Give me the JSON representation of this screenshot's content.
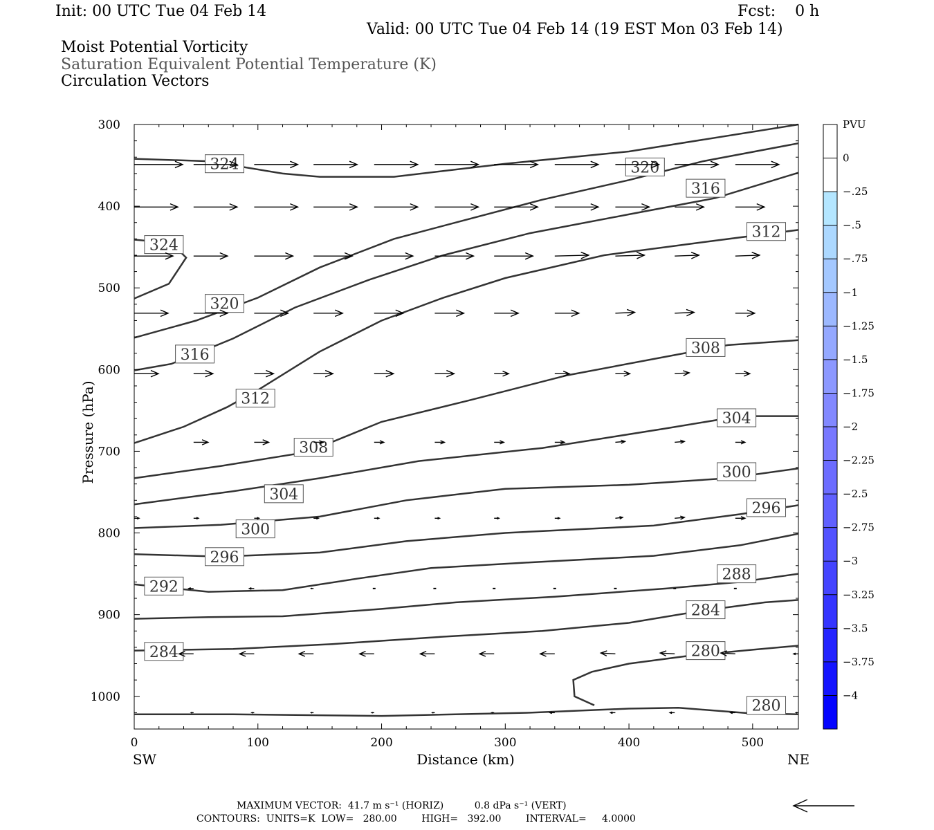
{
  "header": {
    "init": "Init: 00 UTC Tue 04 Feb 14",
    "fcst": "Fcst:    0 h",
    "valid": "Valid: 00 UTC Tue 04 Feb 14 (19 EST Mon 03 Feb 14)",
    "titles": [
      "Moist Potential Vorticity",
      "Saturation Equivalent Potential Temperature (K)",
      "Circulation Vectors"
    ]
  },
  "footer": {
    "line1": "MAXIMUM VECTOR:  41.7 m s⁻¹ (HORIZ)          0.8 dPa s⁻¹ (VERT)",
    "line2": "CONTOURS:  UNITS=K  LOW=   280.00        HIGH=   392.00        INTERVAL=     4.0000"
  },
  "chart_data": {
    "type": "contour cross-section",
    "xlabel": "Distance (km)",
    "ylabel": "Pressure (hPa)",
    "x_end_labels": {
      "left": "SW",
      "right": "NE"
    },
    "xlim": [
      0,
      537
    ],
    "ylim": [
      1040,
      300
    ],
    "x_ticks": [
      0,
      100,
      200,
      300,
      400,
      500
    ],
    "y_ticks": [
      300,
      400,
      500,
      600,
      700,
      800,
      900,
      1000
    ],
    "contour_color": "#333333",
    "contours": [
      {
        "label": "324",
        "points": [
          [
            0,
            342
          ],
          [
            60,
            345
          ],
          [
            120,
            360
          ],
          [
            150,
            364
          ],
          [
            210,
            364
          ],
          [
            300,
            348
          ],
          [
            400,
            333
          ],
          [
            537,
            300
          ]
        ],
        "label_at": [
          [
            73,
            348
          ]
        ]
      },
      {
        "label": "324",
        "points": [
          [
            0,
            441
          ],
          [
            30,
            445
          ],
          [
            42,
            463
          ],
          [
            28,
            495
          ],
          [
            0,
            513
          ]
        ],
        "label_at": [
          [
            24,
            447
          ]
        ]
      },
      {
        "label": "320",
        "points": [
          [
            0,
            561
          ],
          [
            50,
            540
          ],
          [
            100,
            512
          ],
          [
            150,
            475
          ],
          [
            210,
            440
          ],
          [
            260,
            420
          ],
          [
            330,
            392
          ],
          [
            400,
            368
          ],
          [
            460,
            345
          ],
          [
            537,
            323
          ]
        ],
        "label_at": [
          [
            73,
            519
          ],
          [
            413,
            352
          ]
        ]
      },
      {
        "label": "316",
        "points": [
          [
            0,
            601
          ],
          [
            30,
            593
          ],
          [
            80,
            562
          ],
          [
            130,
            524
          ],
          [
            190,
            490
          ],
          [
            250,
            460
          ],
          [
            320,
            433
          ],
          [
            400,
            410
          ],
          [
            470,
            390
          ],
          [
            537,
            359
          ]
        ],
        "label_at": [
          [
            49,
            581
          ],
          [
            462,
            378
          ]
        ]
      },
      {
        "label": "312",
        "points": [
          [
            0,
            690
          ],
          [
            40,
            670
          ],
          [
            75,
            646
          ],
          [
            100,
            625
          ],
          [
            150,
            578
          ],
          [
            200,
            540
          ],
          [
            250,
            512
          ],
          [
            300,
            488
          ],
          [
            380,
            460
          ],
          [
            460,
            444
          ],
          [
            537,
            429
          ]
        ],
        "label_at": [
          [
            98,
            635
          ],
          [
            511,
            431
          ]
        ]
      },
      {
        "label": "308",
        "points": [
          [
            0,
            733
          ],
          [
            70,
            718
          ],
          [
            140,
            701
          ],
          [
            200,
            664
          ],
          [
            270,
            638
          ],
          [
            350,
            607
          ],
          [
            420,
            587
          ],
          [
            480,
            570
          ],
          [
            537,
            564
          ]
        ],
        "label_at": [
          [
            145,
            695
          ],
          [
            462,
            573
          ]
        ]
      },
      {
        "label": "304",
        "points": [
          [
            0,
            765
          ],
          [
            80,
            749
          ],
          [
            150,
            733
          ],
          [
            230,
            712
          ],
          [
            330,
            696
          ],
          [
            430,
            672
          ],
          [
            490,
            657
          ],
          [
            537,
            657
          ]
        ],
        "label_at": [
          [
            121,
            752
          ],
          [
            487,
            659
          ]
        ]
      },
      {
        "label": "300",
        "points": [
          [
            0,
            794
          ],
          [
            70,
            790
          ],
          [
            150,
            780
          ],
          [
            220,
            760
          ],
          [
            300,
            746
          ],
          [
            400,
            741
          ],
          [
            480,
            733
          ],
          [
            537,
            721
          ]
        ],
        "label_at": [
          [
            98,
            795
          ],
          [
            487,
            725
          ]
        ]
      },
      {
        "label": "296",
        "points": [
          [
            0,
            826
          ],
          [
            70,
            829
          ],
          [
            150,
            824
          ],
          [
            220,
            810
          ],
          [
            300,
            800
          ],
          [
            420,
            791
          ],
          [
            490,
            777
          ],
          [
            537,
            766
          ]
        ],
        "label_at": [
          [
            73,
            829
          ],
          [
            511,
            769
          ]
        ]
      },
      {
        "label": "292",
        "points": [
          [
            0,
            863
          ],
          [
            60,
            872
          ],
          [
            120,
            870
          ],
          [
            180,
            856
          ],
          [
            240,
            843
          ],
          [
            320,
            836
          ],
          [
            420,
            828
          ],
          [
            490,
            815
          ],
          [
            537,
            801
          ]
        ],
        "label_at": [
          [
            24,
            865
          ]
        ]
      },
      {
        "label": "288",
        "points": [
          [
            0,
            905
          ],
          [
            60,
            903
          ],
          [
            120,
            902
          ],
          [
            200,
            893
          ],
          [
            260,
            885
          ],
          [
            340,
            878
          ],
          [
            430,
            868
          ],
          [
            490,
            860
          ],
          [
            537,
            850
          ]
        ],
        "label_at": [
          [
            487,
            850
          ]
        ]
      },
      {
        "label": "284",
        "points": [
          [
            0,
            944
          ],
          [
            80,
            942
          ],
          [
            160,
            936
          ],
          [
            250,
            927
          ],
          [
            330,
            920
          ],
          [
            400,
            910
          ],
          [
            460,
            895
          ],
          [
            510,
            885
          ],
          [
            537,
            882
          ]
        ],
        "label_at": [
          [
            24,
            945
          ],
          [
            462,
            894
          ]
        ]
      },
      {
        "label": "280",
        "points": [
          [
            372,
            1011
          ],
          [
            356,
            1000
          ],
          [
            355,
            980
          ],
          [
            370,
            970
          ],
          [
            400,
            960
          ],
          [
            450,
            950
          ],
          [
            500,
            943
          ],
          [
            537,
            938
          ]
        ],
        "label_at": [
          [
            462,
            944
          ]
        ]
      },
      {
        "label": "280",
        "points": [
          [
            0,
            1022
          ],
          [
            80,
            1022
          ],
          [
            200,
            1024
          ],
          [
            320,
            1020
          ],
          [
            400,
            1015
          ],
          [
            440,
            1014
          ],
          [
            500,
            1021
          ],
          [
            537,
            1022
          ]
        ],
        "label_at": [
          [
            511,
            1011
          ]
        ]
      }
    ],
    "circulation_vectors": {
      "unit_note": "arrow lengths in relative units (1 = longest), u>0 toward NE",
      "rows": [
        {
          "p": 349,
          "x": [
            0,
            48,
            97,
            145,
            194,
            243,
            291,
            340,
            389,
            437,
            486
          ],
          "u": [
            1,
            0.9,
            0.9,
            0.9,
            0.9,
            0.9,
            0.9,
            0.9,
            0.9,
            0.9,
            0.9
          ],
          "w": [
            0,
            0,
            0,
            0,
            0,
            0,
            0,
            0,
            0,
            0,
            0
          ]
        },
        {
          "p": 401,
          "x": [
            0,
            48,
            97,
            145,
            194,
            243,
            291,
            340,
            389,
            437,
            486
          ],
          "u": [
            0.9,
            0.9,
            0.9,
            0.9,
            0.9,
            0.9,
            0.9,
            0.9,
            0.7,
            0.6,
            0.6
          ],
          "w": [
            0,
            0,
            0,
            0,
            0,
            0,
            0,
            0,
            0,
            0,
            0
          ]
        },
        {
          "p": 461,
          "x": [
            0,
            48,
            97,
            145,
            194,
            243,
            291,
            340,
            389,
            437,
            486
          ],
          "u": [
            0.8,
            0.7,
            0.8,
            0.8,
            0.8,
            0.8,
            0.8,
            0.7,
            0.6,
            0.5,
            0.5
          ],
          "w": [
            0,
            0,
            0,
            0,
            0,
            0,
            0,
            0.2,
            0.2,
            0.2,
            0.2
          ]
        },
        {
          "p": 531,
          "x": [
            0,
            48,
            97,
            145,
            194,
            243,
            291,
            340,
            389,
            437,
            486
          ],
          "u": [
            0.7,
            0.7,
            0.7,
            0.6,
            0.6,
            0.6,
            0.5,
            0.5,
            0.4,
            0.4,
            0.4
          ],
          "w": [
            0,
            0,
            0,
            0,
            0,
            0,
            0,
            0,
            0.2,
            0.2,
            0
          ]
        },
        {
          "p": 605,
          "x": [
            0,
            48,
            97,
            145,
            194,
            243,
            291,
            340,
            389,
            437,
            486
          ],
          "u": [
            0.5,
            0.4,
            0.4,
            0.4,
            0.4,
            0.4,
            0.3,
            0.3,
            0.3,
            0.3,
            0.3
          ],
          "w": [
            0,
            0,
            0,
            0,
            0,
            0,
            0,
            0,
            0,
            0.2,
            0
          ]
        },
        {
          "p": 689,
          "x": [
            48,
            97,
            145,
            194,
            243,
            291,
            340,
            389,
            437,
            486
          ],
          "u": [
            0.3,
            0.3,
            0.2,
            0.2,
            0.2,
            0.2,
            0.2,
            0.2,
            0.2,
            0.2
          ],
          "w": [
            0,
            0,
            0,
            0,
            0,
            0,
            0,
            0.2,
            0.2,
            0
          ]
        },
        {
          "p": 782,
          "x": [
            0,
            48,
            97,
            145,
            194,
            243,
            291,
            340,
            389,
            437,
            486
          ],
          "u": [
            0.1,
            0.1,
            0.1,
            0.1,
            0.1,
            0.1,
            0.1,
            0.1,
            0.15,
            0.2,
            0.2
          ],
          "w": [
            0,
            0,
            0,
            0,
            0,
            0,
            0,
            0,
            0.2,
            0.2,
            0
          ]
        },
        {
          "p": 868,
          "x": [
            48,
            97,
            145,
            194,
            243,
            291,
            340,
            389,
            437,
            486
          ],
          "u": [
            -0.1,
            -0.1,
            -0.05,
            0,
            0,
            0,
            0,
            0,
            0,
            0
          ],
          "w": [
            0,
            0,
            0,
            0,
            0,
            0,
            0,
            0,
            0,
            0
          ]
        },
        {
          "p": 948,
          "x": [
            48,
            97,
            145,
            194,
            243,
            291,
            340,
            389,
            437,
            486,
            537
          ],
          "u": [
            -0.3,
            -0.3,
            -0.3,
            -0.3,
            -0.3,
            -0.3,
            -0.3,
            -0.3,
            -0.3,
            -0.3,
            -0.1
          ],
          "w": [
            0,
            0,
            0,
            0,
            0,
            0,
            0,
            0.2,
            0.2,
            0.2,
            0
          ]
        },
        {
          "p": 1020,
          "x": [
            48,
            97,
            145,
            194,
            243,
            291,
            340,
            389,
            437,
            486,
            537
          ],
          "u": [
            -0.05,
            -0.05,
            -0.05,
            -0.05,
            -0.05,
            -0.05,
            -0.1,
            -0.1,
            -0.1,
            -0.1,
            -0.05
          ],
          "w": [
            0,
            0,
            0,
            0,
            0,
            0,
            0,
            0,
            0,
            0,
            0
          ]
        }
      ]
    },
    "reference_vector_label": "",
    "colorbar": {
      "title": "PVU",
      "labels": [
        "0",
        "-.25",
        "-.5",
        "-.75",
        "-1",
        "-1.25",
        "-1.5",
        "-1.75",
        "-2",
        "-2.25",
        "-2.5",
        "-2.75",
        "-3",
        "-3.25",
        "-3.5",
        "-3.75",
        "-4"
      ],
      "colors": [
        "#ffffff",
        "#ffffff",
        "#b4e6ff",
        "#acd8ff",
        "#a4c8ff",
        "#9cb8ff",
        "#94a8ff",
        "#8c98ff",
        "#8288ff",
        "#7878ff",
        "#6c6cff",
        "#6060ff",
        "#5252ff",
        "#4444ff",
        "#3434ff",
        "#2424ff",
        "#1414ff",
        "#0404ff"
      ]
    }
  }
}
